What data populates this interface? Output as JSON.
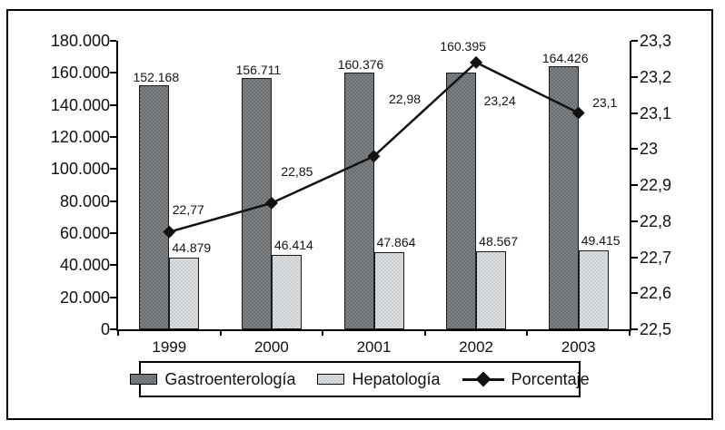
{
  "chart_data": {
    "type": "bar",
    "subtype": "grouped-bars-with-line-overlay",
    "categories": [
      "1999",
      "2000",
      "2001",
      "2002",
      "2003"
    ],
    "series": [
      {
        "name": "Gastroenterología",
        "kind": "bar",
        "axis": "left",
        "values": [
          152168,
          156711,
          160376,
          160395,
          164426
        ],
        "labels": [
          "152.168",
          "156.711",
          "160.376",
          "160.395",
          "164.426"
        ],
        "color": "#73777a"
      },
      {
        "name": "Hepatología",
        "kind": "bar",
        "axis": "left",
        "values": [
          44879,
          46414,
          47864,
          48567,
          49415
        ],
        "labels": [
          "44.879",
          "46.414",
          "47.864",
          "48.567",
          "49.415"
        ],
        "color": "#d4d6d8"
      },
      {
        "name": "Porcentaje",
        "kind": "line",
        "axis": "right",
        "values": [
          22.77,
          22.85,
          22.98,
          23.24,
          23.1
        ],
        "labels": [
          "22,77",
          "22,85",
          "22,98",
          "23,24",
          "23,1"
        ],
        "color": "#111111",
        "marker": "diamond",
        "label_offsets": [
          [
            21,
            -25
          ],
          [
            28,
            -35
          ],
          [
            34,
            -63
          ],
          [
            26,
            42
          ],
          [
            29,
            -12
          ]
        ]
      }
    ],
    "left_axis": {
      "min": 0,
      "max": 180000,
      "step": 20000,
      "tick_labels": [
        "0",
        "20.000",
        "40.000",
        "60.000",
        "80.000",
        "100.000",
        "120.000",
        "140.000",
        "160.000",
        "180.000"
      ]
    },
    "right_axis": {
      "min": 22.5,
      "max": 23.3,
      "step": 0.1,
      "tick_labels": [
        "22,5",
        "22,6",
        "22,7",
        "22,8",
        "22,9",
        "23",
        "23,1",
        "23,2",
        "23,3"
      ]
    },
    "legend": {
      "position": "bottom",
      "entries": [
        "Gastroenterología",
        "Hepatología",
        "Porcentaje"
      ]
    },
    "grid": "off",
    "title": "",
    "xlabel": "",
    "ylabel": ""
  },
  "colors": {
    "bar_dark": "#73777a",
    "bar_light": "#d4d6d8",
    "line": "#111111",
    "axis": "#000000",
    "background": "#ffffff"
  }
}
